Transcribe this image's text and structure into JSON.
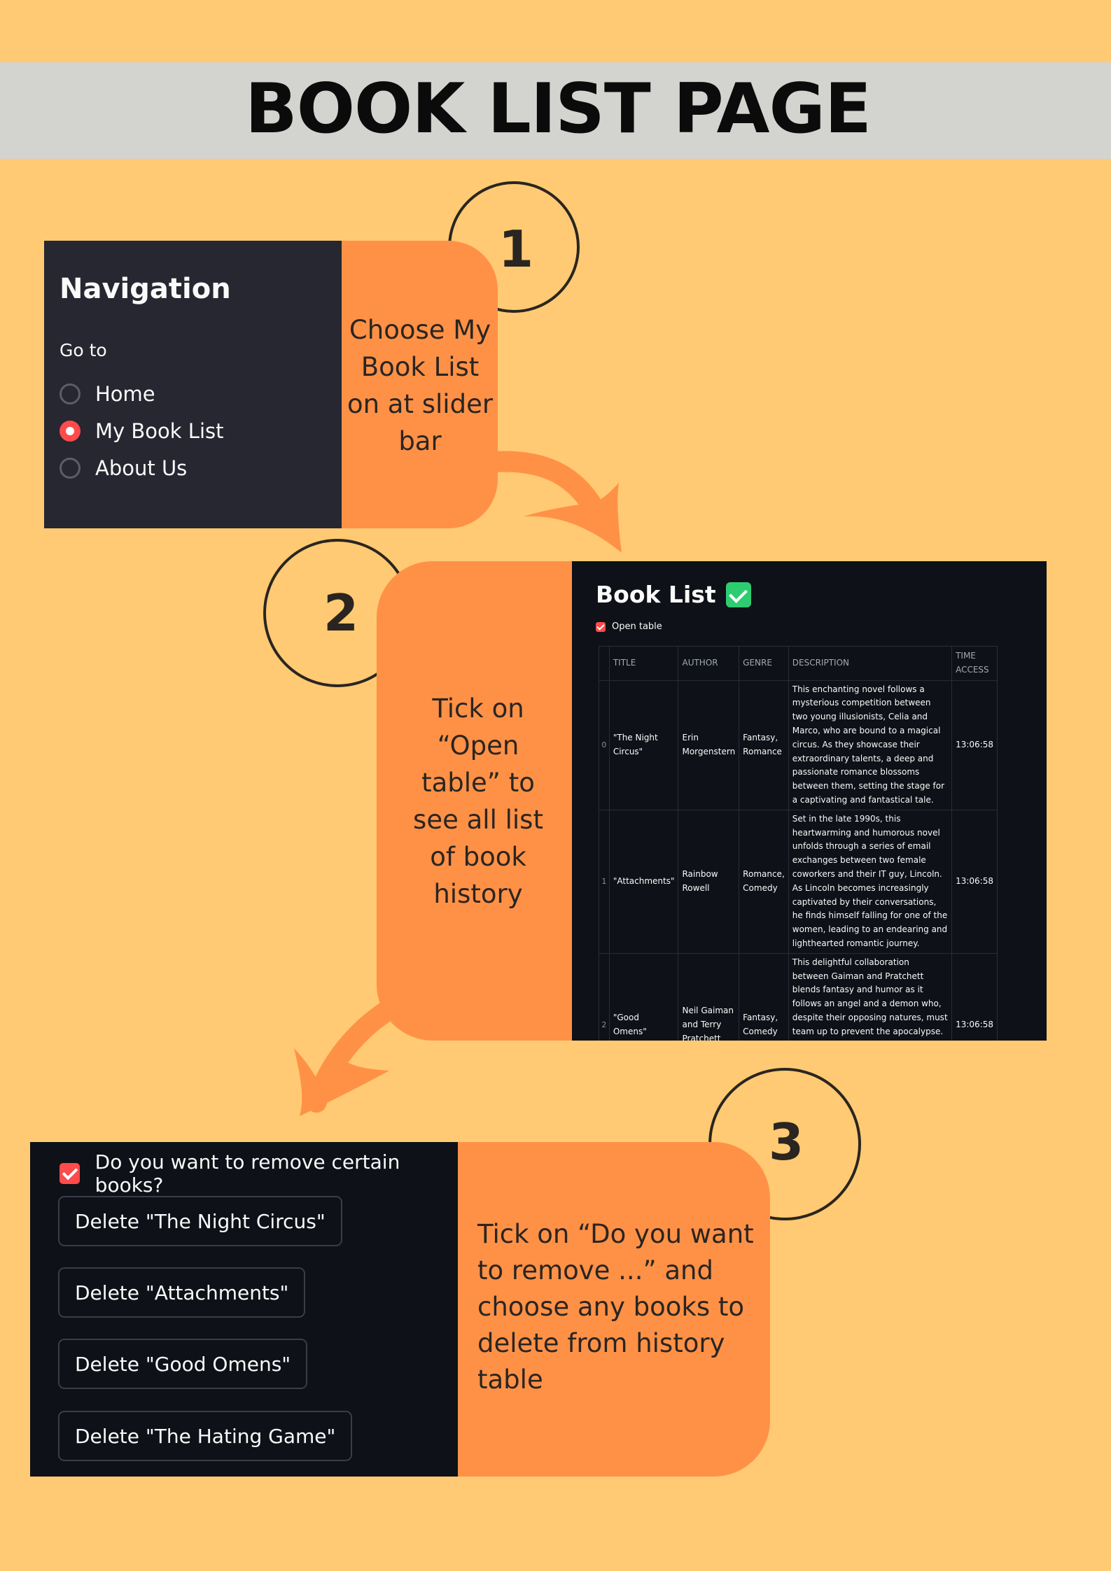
{
  "page_title": "BOOK LIST PAGE",
  "steps": [
    {
      "number": "1",
      "text": "Choose My Book List on at slider bar"
    },
    {
      "number": "2",
      "text": "Tick on “Open table” to see all list of book history"
    },
    {
      "number": "3",
      "text": "Tick on “Do you want to remove ...” and choose any books to delete  from history table"
    }
  ],
  "navigation": {
    "title": "Navigation",
    "goto_label": "Go to",
    "options": [
      {
        "label": "Home",
        "selected": false
      },
      {
        "label": "My Book List",
        "selected": true
      },
      {
        "label": "About Us",
        "selected": false
      }
    ]
  },
  "book_list": {
    "title": "Book List",
    "title_icon": "check-mark-button-emoji",
    "open_table_label": "Open table",
    "open_table_checked": true,
    "columns": [
      "",
      "TITLE",
      "AUTHOR",
      "GENRE",
      "DESCRIPTION",
      "TIME ACCESS"
    ],
    "rows": [
      {
        "index": "0",
        "title": "\"The Night Circus\"",
        "author": "Erin Morgenstern",
        "genre": "Fantasy, Romance",
        "description": "This enchanting novel follows a mysterious competition between two young illusionists, Celia and Marco, who are bound to a magical circus. As they showcase their extraordinary talents, a deep and passionate romance blossoms between them, setting the stage for a captivating and fantastical tale.",
        "time": "13:06:58"
      },
      {
        "index": "1",
        "title": "\"Attachments\"",
        "author": "Rainbow Rowell",
        "genre": "Romance, Comedy",
        "description": "Set in the late 1990s, this heartwarming and humorous novel unfolds through a series of email exchanges between two female coworkers and their IT guy, Lincoln. As Lincoln becomes increasingly captivated by their conversations, he finds himself falling for one of the women, leading to an endearing and lighthearted romantic journey.",
        "time": "13:06:58"
      },
      {
        "index": "2",
        "title": "\"Good Omens\"",
        "author": "Neil Gaiman and Terry Pratchett",
        "genre": "Fantasy, Comedy",
        "description": "This delightful collaboration between Gaiman and Pratchett blends fantasy and humor as it follows an angel and a demon who, despite their opposing natures, must team up to prevent the apocalypse. With witty dialogue, imaginative world-building, and a quirky cast of characters, \"Good Omens\" offers a unique and",
        "time": "13:06:58"
      }
    ]
  },
  "remove": {
    "question": "Do you want to remove certain books?",
    "checked": true,
    "buttons": [
      "Delete \"The Night Circus\"",
      "Delete \"Attachments\"",
      "Delete \"Good Omens\"",
      "Delete \"The Hating Game\""
    ]
  },
  "colors": {
    "background": "#FFCA73",
    "banner": "#D3D3D0",
    "callout": "#FF9147",
    "dark_panel": "#0e1117",
    "sidebar": "#262730",
    "accent_red": "#ff4b4b"
  }
}
